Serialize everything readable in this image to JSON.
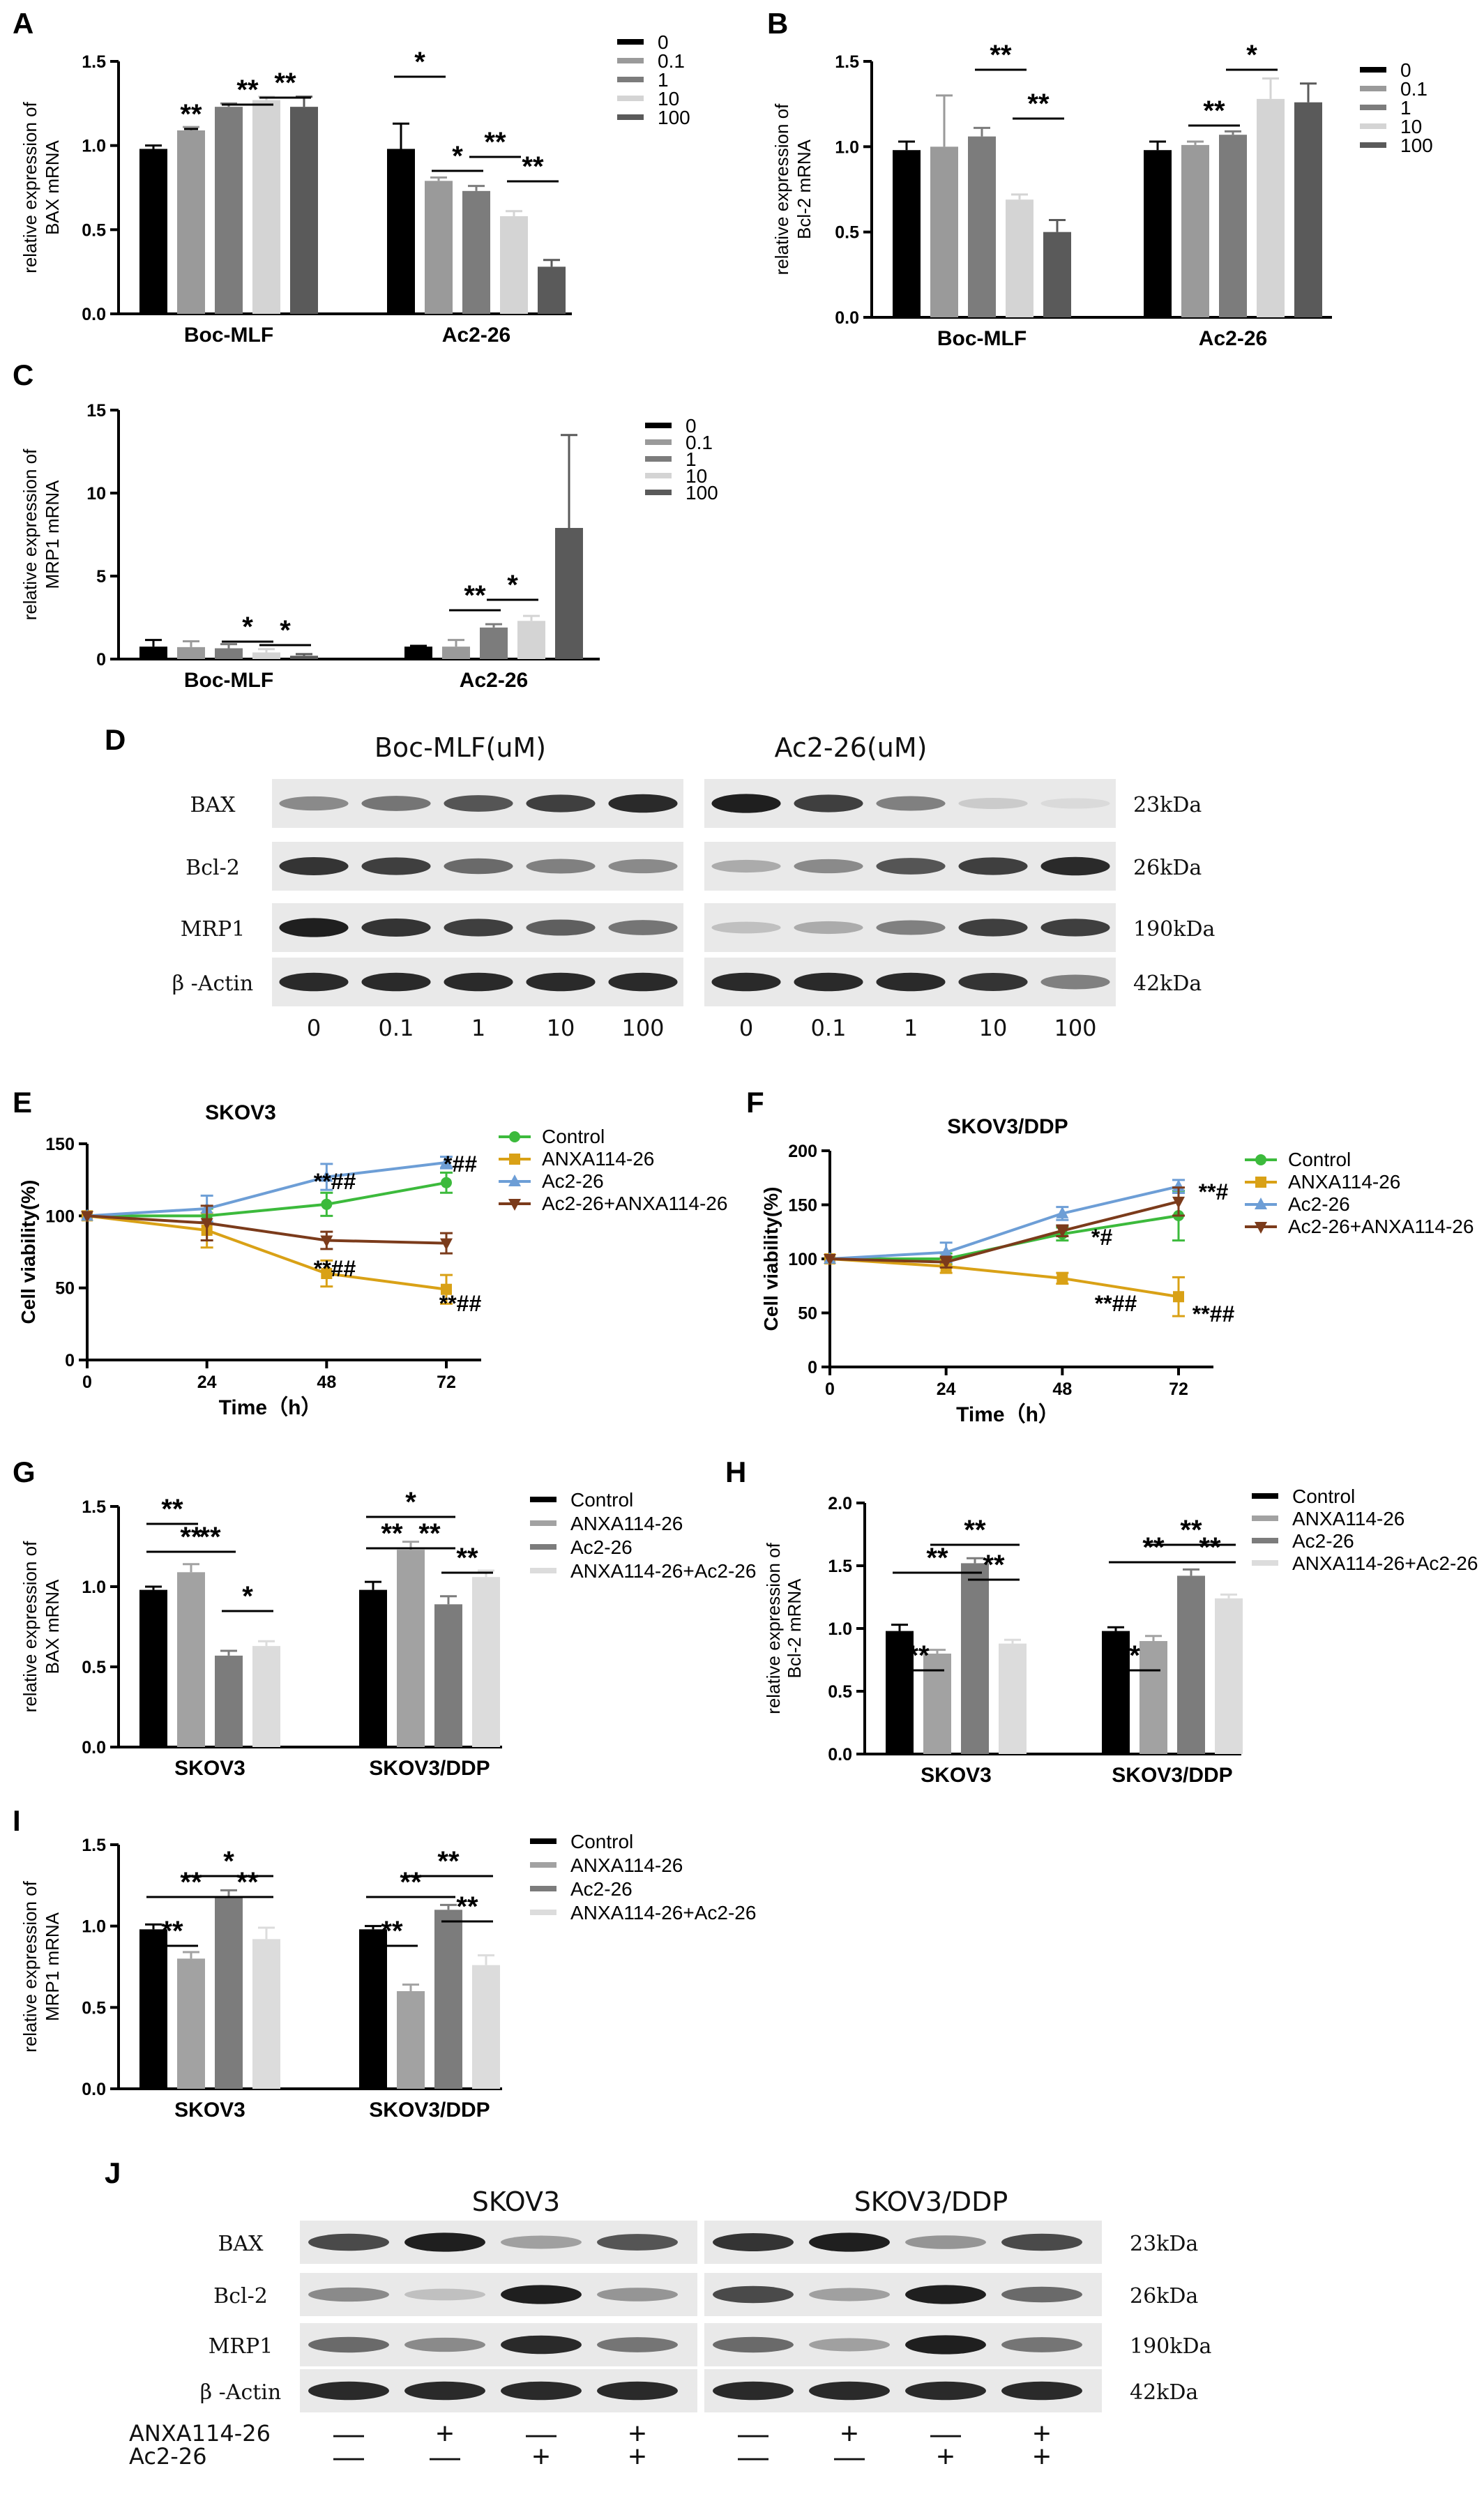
{
  "colors": {
    "bar5": [
      "#000000",
      "#9a9a9a",
      "#7c7c7c",
      "#d4d4d4",
      "#5a5a5a"
    ],
    "bar4": [
      "#000000",
      "#a2a2a2",
      "#7c7c7c",
      "#dcdcdc"
    ],
    "line": [
      "#3cba3c",
      "#d9a116",
      "#6d9ed6",
      "#7b3b1b"
    ]
  },
  "panels": {
    "A": {
      "letter": "A"
    },
    "B": {
      "letter": "B"
    },
    "C": {
      "letter": "C"
    },
    "D": {
      "letter": "D"
    },
    "E": {
      "letter": "E"
    },
    "F": {
      "letter": "F"
    },
    "G": {
      "letter": "G"
    },
    "H": {
      "letter": "H"
    },
    "I": {
      "letter": "I"
    },
    "J": {
      "letter": "J"
    }
  },
  "chart_data": [
    {
      "id": "A",
      "type": "bar",
      "ylabel": "relative expression of BAX mRNA",
      "ylabel_lines": [
        "relative expression of",
        "BAX mRNA"
      ],
      "categories": [
        "Boc-MLF",
        "Ac2-26"
      ],
      "legend": [
        "0",
        "0.1",
        "1",
        "10",
        "100"
      ],
      "ylim": [
        0,
        1.5
      ],
      "yticks": [
        "0.0",
        "0.5",
        "1.0",
        "1.5"
      ],
      "series": [
        {
          "name": "0",
          "values": [
            0.98,
            0.98
          ],
          "err": [
            0.02,
            0.15
          ]
        },
        {
          "name": "0.1",
          "values": [
            1.09,
            0.79
          ],
          "err": [
            0.02,
            0.02
          ]
        },
        {
          "name": "1",
          "values": [
            1.23,
            0.73
          ],
          "err": [
            0.02,
            0.03
          ]
        },
        {
          "name": "10",
          "values": [
            1.27,
            0.58
          ],
          "err": [
            0.02,
            0.03
          ]
        },
        {
          "name": "100",
          "values": [
            1.23,
            0.28
          ],
          "err": [
            0.06,
            0.04
          ]
        }
      ],
      "sig_labels": [
        "**",
        "**",
        "**",
        "*",
        "*",
        "**",
        "**"
      ]
    },
    {
      "id": "B",
      "type": "bar",
      "ylabel": "relative expression of Bcl-2 mRNA",
      "ylabel_lines": [
        "relative expression of",
        "Bcl-2 mRNA"
      ],
      "categories": [
        "Boc-MLF",
        "Ac2-26"
      ],
      "legend": [
        "0",
        "0.1",
        "1",
        "10",
        "100"
      ],
      "ylim": [
        0,
        1.5
      ],
      "yticks": [
        "0.0",
        "0.5",
        "1.0",
        "1.5"
      ],
      "series": [
        {
          "name": "0",
          "values": [
            0.98,
            0.98
          ],
          "err": [
            0.05,
            0.05
          ]
        },
        {
          "name": "0.1",
          "values": [
            1.0,
            1.01
          ],
          "err": [
            0.3,
            0.02
          ]
        },
        {
          "name": "1",
          "values": [
            1.06,
            1.07
          ],
          "err": [
            0.05,
            0.02
          ]
        },
        {
          "name": "10",
          "values": [
            0.69,
            1.28
          ],
          "err": [
            0.03,
            0.12
          ]
        },
        {
          "name": "100",
          "values": [
            0.5,
            1.26
          ],
          "err": [
            0.07,
            0.11
          ]
        }
      ],
      "sig_labels": [
        "**",
        "**",
        "**",
        "*"
      ]
    },
    {
      "id": "C",
      "type": "bar",
      "ylabel": "relative expression of MRP1 mRNA",
      "ylabel_lines": [
        "relative expression of",
        "MRP1 mRNA"
      ],
      "categories": [
        "Boc-MLF",
        "Ac2-26"
      ],
      "legend": [
        "0",
        "0.1",
        "1",
        "10",
        "100"
      ],
      "ylim": [
        0,
        15
      ],
      "yticks": [
        "0",
        "5",
        "10",
        "15"
      ],
      "series": [
        {
          "name": "0",
          "values": [
            0.75,
            0.75
          ],
          "err": [
            0.4,
            0.05
          ]
        },
        {
          "name": "0.1",
          "values": [
            0.72,
            0.75
          ],
          "err": [
            0.35,
            0.4
          ]
        },
        {
          "name": "1",
          "values": [
            0.65,
            1.9
          ],
          "err": [
            0.25,
            0.2
          ]
        },
        {
          "name": "10",
          "values": [
            0.4,
            2.3
          ],
          "err": [
            0.2,
            0.3
          ]
        },
        {
          "name": "100",
          "values": [
            0.2,
            7.9
          ],
          "err": [
            0.1,
            5.6
          ]
        }
      ],
      "sig_labels": [
        "*",
        "*",
        "**",
        "*"
      ]
    },
    {
      "id": "E",
      "type": "line",
      "title": "SKOV3",
      "ylabel": "Cell viability(%)",
      "xlabel": "Time（h）",
      "x": [
        0,
        24,
        48,
        72
      ],
      "xticks": [
        "0",
        "24",
        "48",
        "72"
      ],
      "ylim": [
        0,
        150
      ],
      "yticks": [
        "0",
        "50",
        "100",
        "150"
      ],
      "series": [
        {
          "name": "Control",
          "values": [
            100,
            100,
            108,
            123
          ],
          "err": [
            0,
            5,
            8,
            7
          ]
        },
        {
          "name": "ANXA114-26",
          "values": [
            100,
            90,
            60,
            49
          ],
          "err": [
            0,
            12,
            9,
            10
          ]
        },
        {
          "name": "Ac2-26",
          "values": [
            100,
            105,
            127,
            137
          ],
          "err": [
            0,
            9,
            9,
            4
          ]
        },
        {
          "name": "Ac2-26+ANXA114-26",
          "values": [
            100,
            95,
            83,
            81
          ],
          "err": [
            0,
            12,
            6,
            7
          ]
        }
      ],
      "annotations": [
        "**##",
        "*##",
        "**##",
        "**##"
      ]
    },
    {
      "id": "F",
      "type": "line",
      "title": "SKOV3/DDP",
      "ylabel": "Cell viability(%)",
      "xlabel": "Time（h）",
      "x": [
        0,
        24,
        48,
        72
      ],
      "xticks": [
        "0",
        "24",
        "48",
        "72"
      ],
      "ylim": [
        0,
        200
      ],
      "yticks": [
        "0",
        "50",
        "100",
        "150",
        "200"
      ],
      "series": [
        {
          "name": "Control",
          "values": [
            100,
            100,
            123,
            140
          ],
          "err": [
            0,
            5,
            6,
            23
          ]
        },
        {
          "name": "ANXA114-26",
          "values": [
            100,
            93,
            82,
            65
          ],
          "err": [
            0,
            6,
            5,
            18
          ]
        },
        {
          "name": "Ac2-26",
          "values": [
            100,
            106,
            142,
            167
          ],
          "err": [
            0,
            9,
            6,
            6
          ]
        },
        {
          "name": "Ac2-26+ANXA114-26",
          "values": [
            100,
            97,
            126,
            153
          ],
          "err": [
            0,
            5,
            5,
            13
          ]
        }
      ],
      "annotations": [
        "*#",
        "**#",
        "**##",
        "**##"
      ]
    },
    {
      "id": "G",
      "type": "bar",
      "ylabel": "relative expression of BAX mRNA",
      "ylabel_lines": [
        "relative expression of",
        "BAX mRNA"
      ],
      "categories": [
        "SKOV3",
        "SKOV3/DDP"
      ],
      "legend": [
        "Control",
        "ANXA114-26",
        "Ac2-26",
        "ANXA114-26+Ac2-26"
      ],
      "ylim": [
        0,
        1.5
      ],
      "yticks": [
        "0.0",
        "0.5",
        "1.0",
        "1.5"
      ],
      "series": [
        {
          "name": "Control",
          "values": [
            0.98,
            0.98
          ],
          "err": [
            0.02,
            0.05
          ]
        },
        {
          "name": "ANXA114-26",
          "values": [
            1.09,
            1.23
          ],
          "err": [
            0.05,
            0.05
          ]
        },
        {
          "name": "Ac2-26",
          "values": [
            0.57,
            0.89
          ],
          "err": [
            0.03,
            0.05
          ]
        },
        {
          "name": "ANXA114-26+Ac2-26",
          "values": [
            0.63,
            1.06
          ],
          "err": [
            0.03,
            0.04
          ]
        }
      ],
      "sig_labels": [
        "**",
        "**",
        "**",
        "*",
        "*",
        "**",
        "**",
        "**"
      ]
    },
    {
      "id": "H",
      "type": "bar",
      "ylabel": "relative expression of Bcl-2 mRNA",
      "ylabel_lines": [
        "relative expression of",
        "Bcl-2 mRNA"
      ],
      "categories": [
        "SKOV3",
        "SKOV3/DDP"
      ],
      "legend": [
        "Control",
        "ANXA114-26",
        "Ac2-26",
        "ANXA114-26+Ac2-26"
      ],
      "ylim": [
        0,
        2.0
      ],
      "yticks": [
        "0.0",
        "0.5",
        "1.0",
        "1.5",
        "2.0"
      ],
      "series": [
        {
          "name": "Control",
          "values": [
            0.98,
            0.98
          ],
          "err": [
            0.05,
            0.03
          ]
        },
        {
          "name": "ANXA114-26",
          "values": [
            0.8,
            0.9
          ],
          "err": [
            0.03,
            0.04
          ]
        },
        {
          "name": "Ac2-26",
          "values": [
            1.52,
            1.42
          ],
          "err": [
            0.04,
            0.05
          ]
        },
        {
          "name": "ANXA114-26+Ac2-26",
          "values": [
            0.88,
            1.24
          ],
          "err": [
            0.03,
            0.03
          ]
        }
      ],
      "sig_labels": [
        "**",
        "**",
        "**",
        "**",
        "*",
        "**",
        "**",
        "**"
      ]
    },
    {
      "id": "I",
      "type": "bar",
      "ylabel": "relative expression of MRP1 mRNA",
      "ylabel_lines": [
        "relative expression of",
        "MRP1 mRNA"
      ],
      "categories": [
        "SKOV3",
        "SKOV3/DDP"
      ],
      "legend": [
        "Control",
        "ANXA114-26",
        "Ac2-26",
        "ANXA114-26+Ac2-26"
      ],
      "ylim": [
        0,
        1.5
      ],
      "yticks": [
        "0.0",
        "0.5",
        "1.0",
        "1.5"
      ],
      "series": [
        {
          "name": "Control",
          "values": [
            0.98,
            0.98
          ],
          "err": [
            0.03,
            0.02
          ]
        },
        {
          "name": "ANXA114-26",
          "values": [
            0.8,
            0.6
          ],
          "err": [
            0.04,
            0.04
          ]
        },
        {
          "name": "Ac2-26",
          "values": [
            1.18,
            1.1
          ],
          "err": [
            0.04,
            0.03
          ]
        },
        {
          "name": "ANXA114-26+Ac2-26",
          "values": [
            0.92,
            0.76
          ],
          "err": [
            0.07,
            0.06
          ]
        }
      ],
      "sig_labels": [
        "**",
        "**",
        "**",
        "*",
        "**",
        "**",
        "**",
        "**"
      ]
    }
  ],
  "blots": {
    "D": {
      "groups": [
        "Boc-MLF(uM)",
        "Ac2-26(uM)"
      ],
      "rows": [
        "BAX",
        "Bcl-2",
        "MRP1",
        "β -Actin"
      ],
      "kda": [
        "23kDa",
        "26kDa",
        "190kDa",
        "42kDa"
      ],
      "lanes": [
        "0",
        "0.1",
        "1",
        "10",
        "100",
        "0",
        "0.1",
        "1",
        "10",
        "100"
      ],
      "intensity": [
        [
          0.45,
          0.55,
          0.7,
          0.8,
          0.9,
          0.95,
          0.8,
          0.5,
          0.15,
          0.08
        ],
        [
          0.85,
          0.8,
          0.6,
          0.5,
          0.45,
          0.3,
          0.45,
          0.7,
          0.8,
          0.9
        ],
        [
          0.95,
          0.85,
          0.8,
          0.65,
          0.55,
          0.2,
          0.3,
          0.5,
          0.8,
          0.8
        ],
        [
          0.9,
          0.9,
          0.9,
          0.9,
          0.9,
          0.9,
          0.9,
          0.9,
          0.85,
          0.5
        ]
      ]
    },
    "J": {
      "groups": [
        "SKOV3",
        "SKOV3/DDP"
      ],
      "rows": [
        "BAX",
        "Bcl-2",
        "MRP1",
        "β -Actin"
      ],
      "kda": [
        "23kDa",
        "26kDa",
        "190kDa",
        "42kDa"
      ],
      "treat_labels": [
        "ANXA114-26",
        "Ac2-26"
      ],
      "treat1": [
        "—",
        "+",
        "—",
        "+",
        "—",
        "+",
        "—",
        "+"
      ],
      "treat2": [
        "—",
        "—",
        "+",
        "+",
        "—",
        "—",
        "+",
        "+"
      ],
      "intensity": [
        [
          0.75,
          0.95,
          0.35,
          0.7,
          0.85,
          0.95,
          0.4,
          0.75
        ],
        [
          0.45,
          0.2,
          0.95,
          0.4,
          0.75,
          0.35,
          0.95,
          0.6
        ],
        [
          0.6,
          0.45,
          0.9,
          0.55,
          0.6,
          0.35,
          0.95,
          0.55
        ],
        [
          0.9,
          0.9,
          0.9,
          0.9,
          0.9,
          0.9,
          0.9,
          0.9
        ]
      ]
    }
  }
}
